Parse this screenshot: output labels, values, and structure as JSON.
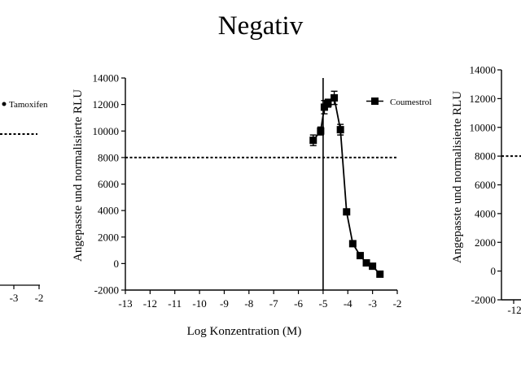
{
  "title": "Negativ",
  "chart_data": [
    {
      "type": "scatter",
      "title": "",
      "xlabel": "",
      "ylabel": "",
      "xlim": [
        -13,
        -2
      ],
      "x_ticks_visible": [
        "-3",
        "-2"
      ],
      "legend": [
        "Tamoxifen"
      ],
      "legend_position": "top-right",
      "threshold_line": 8000,
      "partially_visible": "left-edge"
    },
    {
      "type": "line",
      "title": "",
      "xlabel": "Log Konzentration (M)",
      "ylabel": "Angepasste und normalisierte RLU",
      "xlim": [
        -13,
        -2
      ],
      "ylim": [
        -2000,
        14000
      ],
      "x_ticks": [
        "-13",
        "-12",
        "-11",
        "-10",
        "-9",
        "-8",
        "-7",
        "-6",
        "-5",
        "-4",
        "-3",
        "-2"
      ],
      "y_ticks": [
        "-2000",
        "0",
        "2000",
        "4000",
        "6000",
        "8000",
        "10000",
        "12000",
        "14000"
      ],
      "threshold_line": 8000,
      "vertical_line_x": -5,
      "legend_position": "top-right",
      "series": [
        {
          "name": "Coumestrol",
          "x": [
            -5.4,
            -5.1,
            -4.95,
            -4.8,
            -4.55,
            -4.3,
            -4.05,
            -3.8,
            -3.5,
            -3.25,
            -3.0,
            -2.7
          ],
          "y": [
            9300,
            10000,
            11800,
            12100,
            12500,
            10100,
            3900,
            1500,
            600,
            50,
            -200,
            -800
          ],
          "err": [
            400,
            300,
            500,
            300,
            500,
            400,
            150,
            100,
            100,
            100,
            100,
            100
          ]
        }
      ]
    },
    {
      "type": "scatter",
      "title": "",
      "xlabel": "",
      "ylabel": "Angepasste und normalisierte RLU",
      "ylim": [
        -2000,
        14000
      ],
      "y_ticks": [
        "-2000",
        "0",
        "2000",
        "4000",
        "6000",
        "8000",
        "10000",
        "12000",
        "14000"
      ],
      "x_ticks_visible": [
        "-12"
      ],
      "threshold_line": 8000,
      "partially_visible": "right-edge"
    }
  ]
}
